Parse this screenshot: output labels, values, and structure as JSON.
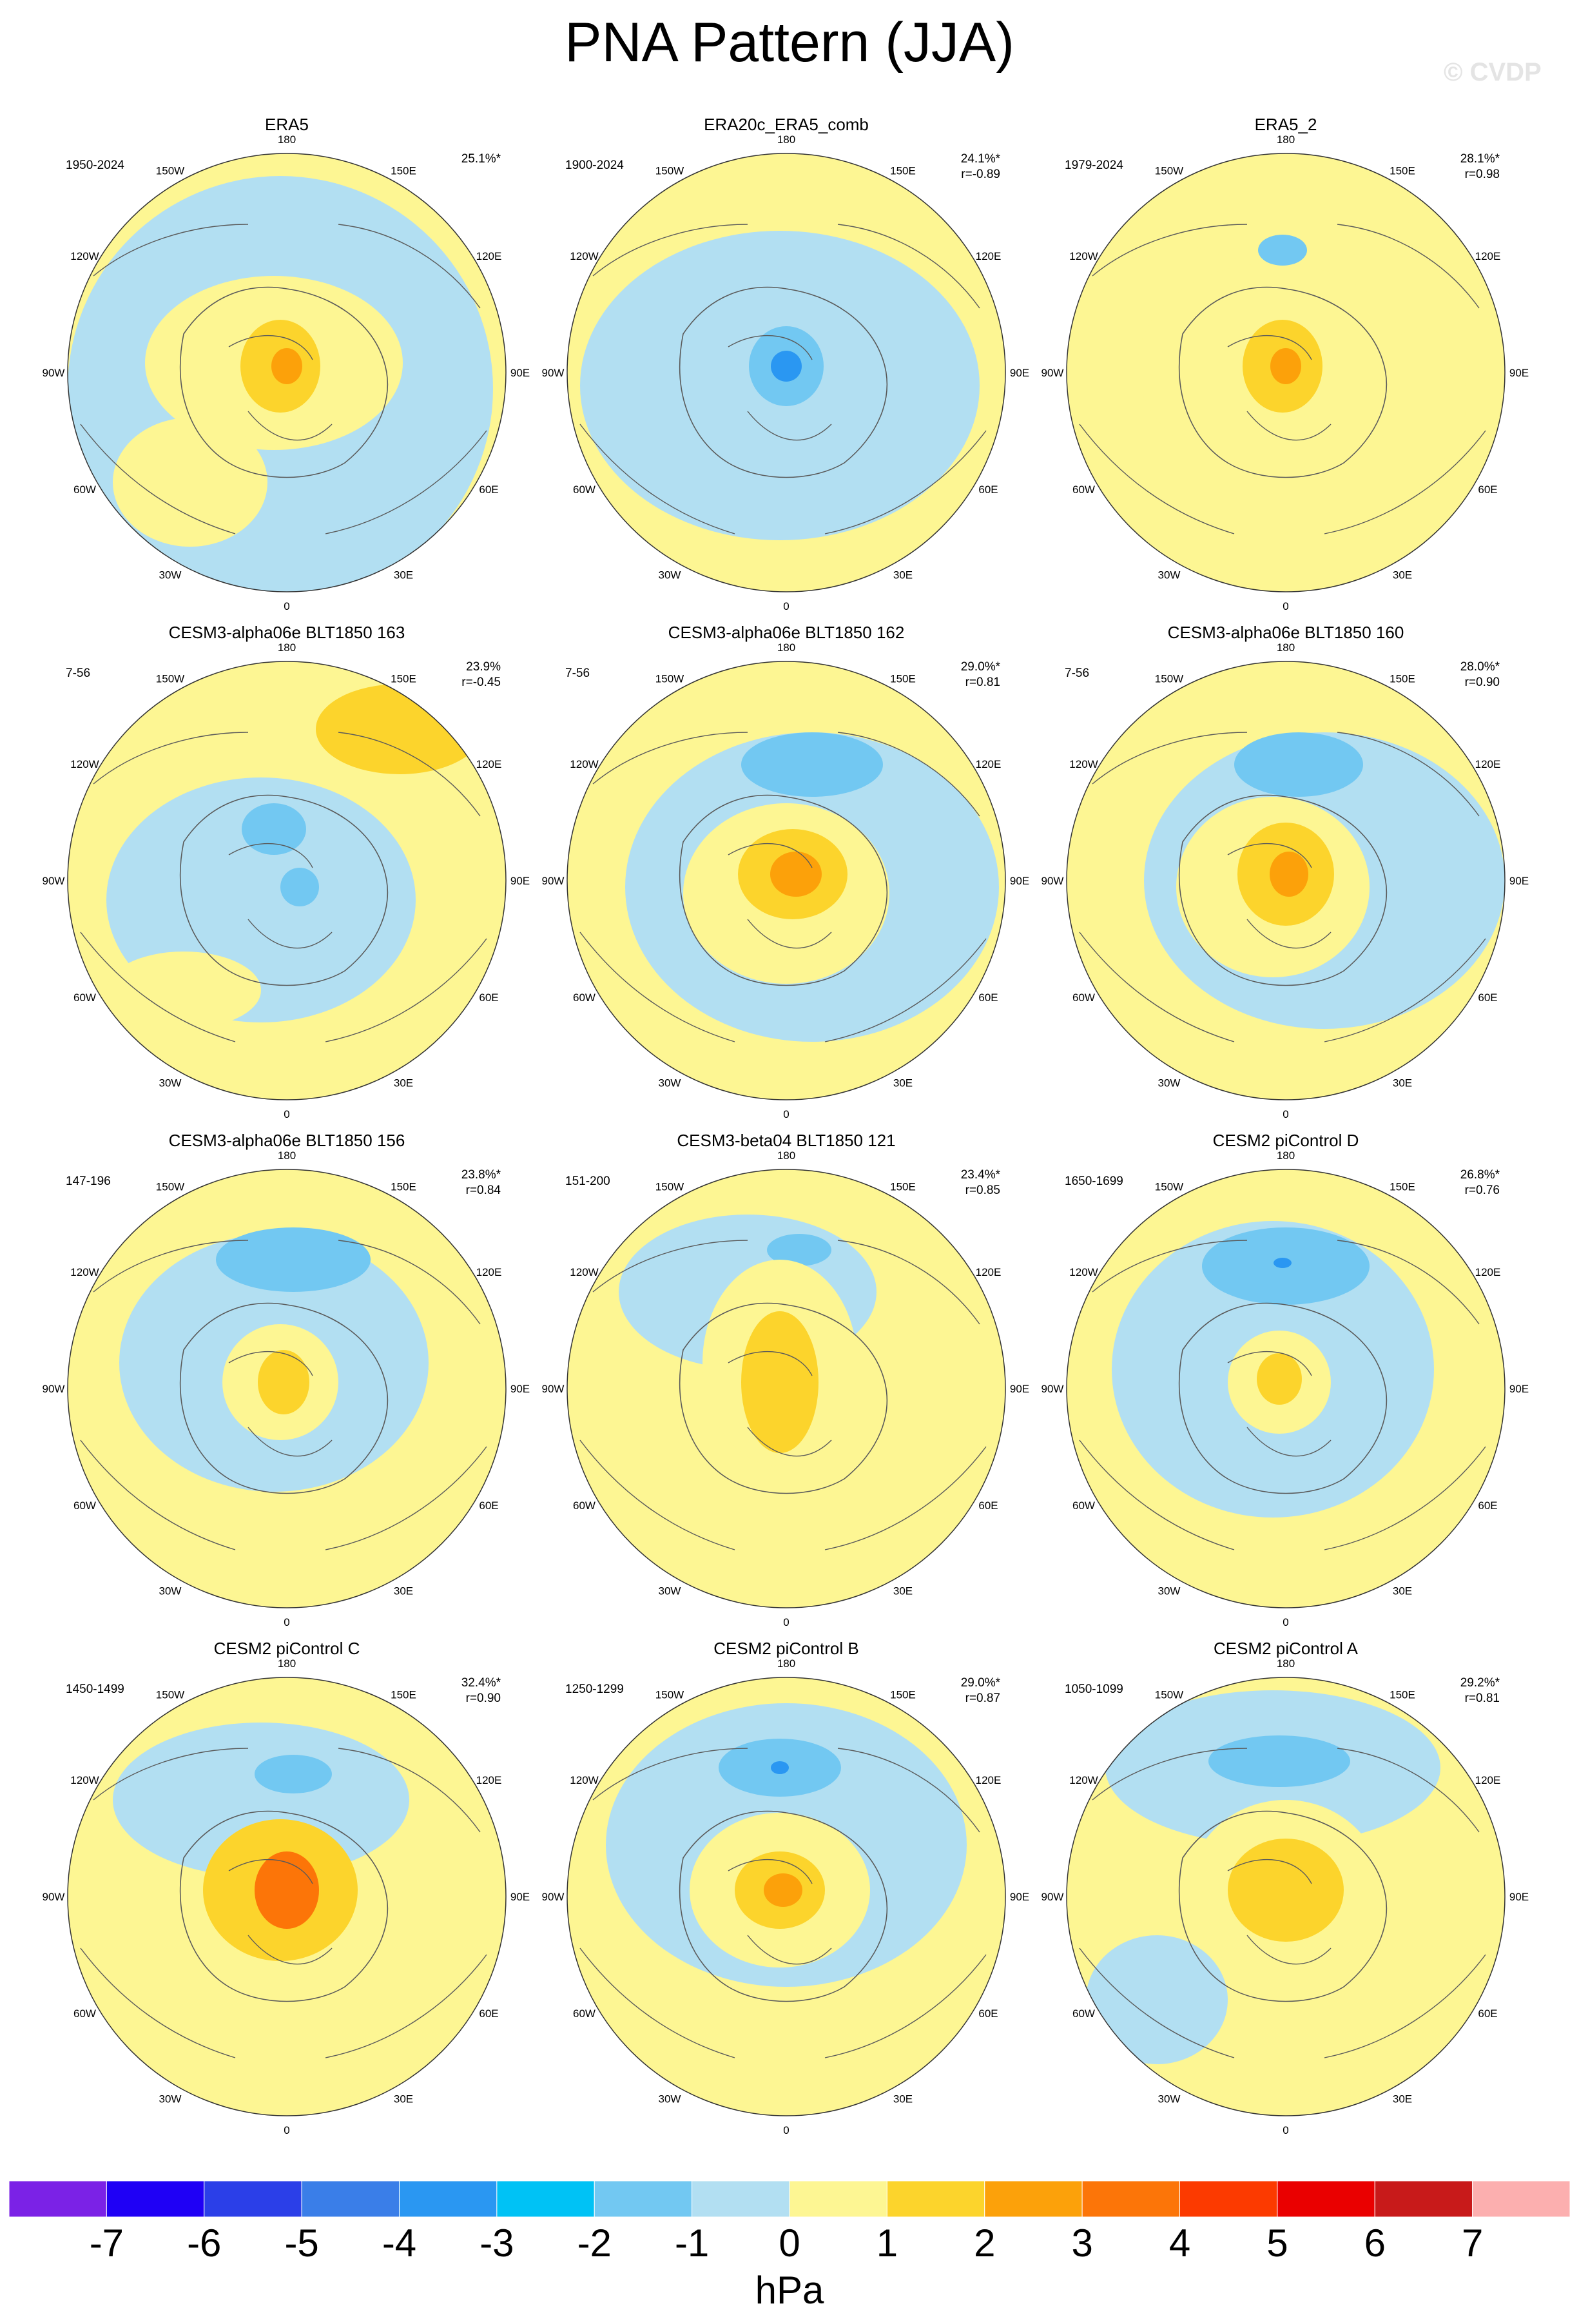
{
  "title": "PNA Pattern (JJA)",
  "watermark": "© CVDP",
  "colorbar": {
    "labels": [
      "-7",
      "-6",
      "-5",
      "-4",
      "-3",
      "-2",
      "-1",
      "0",
      "1",
      "2",
      "3",
      "4",
      "5",
      "6",
      "7"
    ],
    "colors": [
      "#7b22e6",
      "#1f00f5",
      "#2b3fe8",
      "#3a7ee8",
      "#2a97f2",
      "#00c2f5",
      "#72c8f2",
      "#b2dff2",
      "#fdf693",
      "#fcd42c",
      "#fca10a",
      "#fc7508",
      "#fc3a00",
      "#ea0000",
      "#c81a1a",
      "#fcafaf"
    ],
    "units": "hPa"
  },
  "lon_labels": [
    "180",
    "150E",
    "120E",
    "90E",
    "60E",
    "30E",
    "0",
    "30W",
    "60W",
    "90W",
    "120W",
    "150W"
  ],
  "panels": [
    {
      "title": "ERA5",
      "years": "1950-2024",
      "pct": "25.1%*",
      "r": ""
    },
    {
      "title": "ERA20c_ERA5_comb",
      "years": "1900-2024",
      "pct": "24.1%*",
      "r": "r=-0.89"
    },
    {
      "title": "ERA5_2",
      "years": "1979-2024",
      "pct": "28.1%*",
      "r": "r=0.98"
    },
    {
      "title": "CESM3-alpha06e BLT1850 163",
      "years": "7-56",
      "pct": "23.9%",
      "r": "r=-0.45"
    },
    {
      "title": "CESM3-alpha06e BLT1850 162",
      "years": "7-56",
      "pct": "29.0%*",
      "r": "r=0.81"
    },
    {
      "title": "CESM3-alpha06e BLT1850 160",
      "years": "7-56",
      "pct": "28.0%*",
      "r": "r=0.90"
    },
    {
      "title": "CESM3-alpha06e BLT1850 156",
      "years": "147-196",
      "pct": "23.8%*",
      "r": "r=0.84"
    },
    {
      "title": "CESM3-beta04 BLT1850 121",
      "years": "151-200",
      "pct": "23.4%*",
      "r": "r=0.85"
    },
    {
      "title": "CESM2 piControl D",
      "years": "1650-1699",
      "pct": "26.8%*",
      "r": "r=0.76"
    },
    {
      "title": "CESM2 piControl C",
      "years": "1450-1499",
      "pct": "32.4%*",
      "r": "r=0.90"
    },
    {
      "title": "CESM2 piControl B",
      "years": "1250-1299",
      "pct": "29.0%*",
      "r": "r=0.87"
    },
    {
      "title": "CESM2 piControl A",
      "years": "1050-1099",
      "pct": "29.2%*",
      "r": "r=0.81"
    }
  ]
}
